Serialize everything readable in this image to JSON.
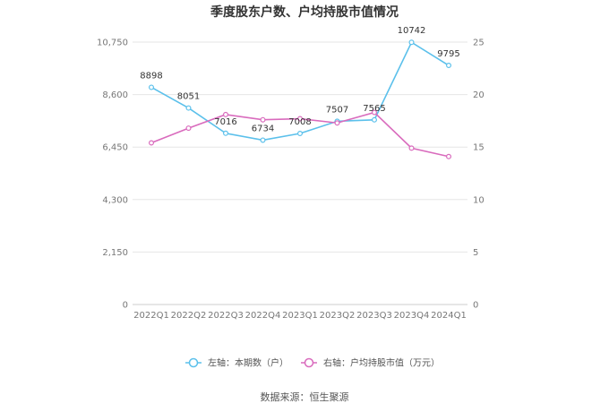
{
  "chart_data": {
    "type": "line",
    "title": "季度股东户数、户均持股市值情况",
    "categories": [
      "2022Q1",
      "2022Q2",
      "2022Q3",
      "2022Q4",
      "2023Q1",
      "2023Q2",
      "2023Q3",
      "2023Q4",
      "2024Q1"
    ],
    "left_axis": {
      "ylim": [
        0,
        10750
      ],
      "ticks": [
        0,
        2150,
        4300,
        6450,
        8600,
        10750
      ],
      "tick_labels": [
        "0",
        "2,150",
        "4,300",
        "6,450",
        "8,600",
        "10,750"
      ]
    },
    "right_axis": {
      "ylim": [
        0,
        25
      ],
      "ticks": [
        0,
        5,
        10,
        15,
        20,
        25
      ],
      "tick_labels": [
        "0",
        "5",
        "10",
        "15",
        "20",
        "25"
      ]
    },
    "series": [
      {
        "name": "左轴：本期数（户）",
        "axis": "left",
        "color": "#5bc0eb",
        "values": [
          8898,
          8051,
          7016,
          6734,
          7008,
          7507,
          7565,
          10742,
          9795
        ],
        "labels": [
          "8898",
          "8051",
          "7016",
          "6734",
          "7008",
          "7507",
          "7565",
          "10742",
          "9795"
        ]
      },
      {
        "name": "右轴：户均持股市值（万元）",
        "axis": "right",
        "color": "#d96bbd",
        "values": [
          15.4,
          16.8,
          18.1,
          17.6,
          17.7,
          17.3,
          18.3,
          14.9,
          14.1
        ]
      }
    ],
    "grid": true,
    "legend_position": "bottom",
    "source": "数据来源：恒生聚源"
  }
}
